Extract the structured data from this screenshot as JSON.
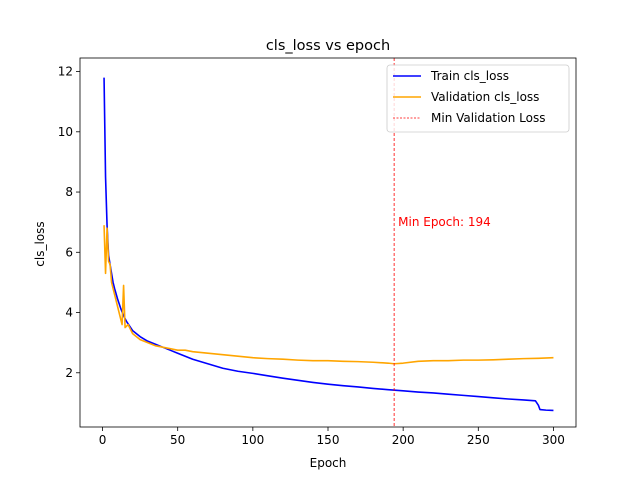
{
  "chart_data": {
    "type": "line",
    "title": "cls_loss vs epoch",
    "xlabel": "Epoch",
    "ylabel": "cls_loss",
    "xlim": [
      -15,
      315
    ],
    "ylim": [
      0.2,
      12.45
    ],
    "xticks": [
      0,
      50,
      100,
      150,
      200,
      250,
      300
    ],
    "yticks": [
      2,
      4,
      6,
      8,
      10,
      12
    ],
    "grid": false,
    "legend_position": "top-right",
    "series": [
      {
        "name": "Train cls_loss",
        "color": "#0000ff",
        "points": [
          [
            1,
            11.8
          ],
          [
            2,
            8.5
          ],
          [
            3,
            6.9
          ],
          [
            4,
            5.9
          ],
          [
            5,
            5.6
          ],
          [
            6,
            5.3
          ],
          [
            7,
            5.0
          ],
          [
            8,
            4.8
          ],
          [
            10,
            4.45
          ],
          [
            12,
            4.15
          ],
          [
            14,
            3.9
          ],
          [
            16,
            3.7
          ],
          [
            18,
            3.55
          ],
          [
            20,
            3.4
          ],
          [
            25,
            3.2
          ],
          [
            30,
            3.05
          ],
          [
            35,
            2.95
          ],
          [
            40,
            2.85
          ],
          [
            45,
            2.75
          ],
          [
            50,
            2.65
          ],
          [
            55,
            2.55
          ],
          [
            60,
            2.45
          ],
          [
            70,
            2.3
          ],
          [
            80,
            2.15
          ],
          [
            90,
            2.05
          ],
          [
            100,
            1.98
          ],
          [
            110,
            1.9
          ],
          [
            120,
            1.82
          ],
          [
            130,
            1.75
          ],
          [
            140,
            1.68
          ],
          [
            150,
            1.62
          ],
          [
            160,
            1.57
          ],
          [
            170,
            1.53
          ],
          [
            180,
            1.48
          ],
          [
            190,
            1.44
          ],
          [
            200,
            1.4
          ],
          [
            210,
            1.36
          ],
          [
            220,
            1.33
          ],
          [
            230,
            1.29
          ],
          [
            240,
            1.25
          ],
          [
            250,
            1.21
          ],
          [
            260,
            1.17
          ],
          [
            270,
            1.13
          ],
          [
            280,
            1.1
          ],
          [
            288,
            1.07
          ],
          [
            290,
            0.92
          ],
          [
            291,
            0.78
          ],
          [
            295,
            0.76
          ],
          [
            300,
            0.75
          ]
        ]
      },
      {
        "name": "Validation cls_loss",
        "color": "#ffa500",
        "points": [
          [
            1,
            6.9
          ],
          [
            2,
            5.3
          ],
          [
            3,
            6.8
          ],
          [
            4,
            5.7
          ],
          [
            5,
            5.6
          ],
          [
            6,
            5.0
          ],
          [
            7,
            4.8
          ],
          [
            8,
            4.6
          ],
          [
            10,
            4.2
          ],
          [
            12,
            3.8
          ],
          [
            13,
            3.6
          ],
          [
            14,
            4.9
          ],
          [
            15,
            3.5
          ],
          [
            17,
            3.6
          ],
          [
            20,
            3.3
          ],
          [
            25,
            3.1
          ],
          [
            30,
            3.0
          ],
          [
            35,
            2.9
          ],
          [
            40,
            2.85
          ],
          [
            45,
            2.8
          ],
          [
            50,
            2.75
          ],
          [
            55,
            2.75
          ],
          [
            60,
            2.7
          ],
          [
            70,
            2.65
          ],
          [
            80,
            2.6
          ],
          [
            90,
            2.55
          ],
          [
            100,
            2.5
          ],
          [
            110,
            2.47
          ],
          [
            120,
            2.45
          ],
          [
            130,
            2.42
          ],
          [
            140,
            2.4
          ],
          [
            150,
            2.4
          ],
          [
            160,
            2.38
          ],
          [
            170,
            2.37
          ],
          [
            180,
            2.35
          ],
          [
            190,
            2.32
          ],
          [
            194,
            2.3
          ],
          [
            200,
            2.32
          ],
          [
            210,
            2.38
          ],
          [
            220,
            2.4
          ],
          [
            230,
            2.4
          ],
          [
            240,
            2.42
          ],
          [
            250,
            2.42
          ],
          [
            260,
            2.43
          ],
          [
            270,
            2.45
          ],
          [
            280,
            2.47
          ],
          [
            290,
            2.48
          ],
          [
            300,
            2.5
          ]
        ]
      }
    ],
    "min_line": {
      "name": "Min Validation Loss",
      "x": 194,
      "color": "#ff0000",
      "annotation": "Min Epoch: 194",
      "annotation_y": 7.0
    }
  }
}
